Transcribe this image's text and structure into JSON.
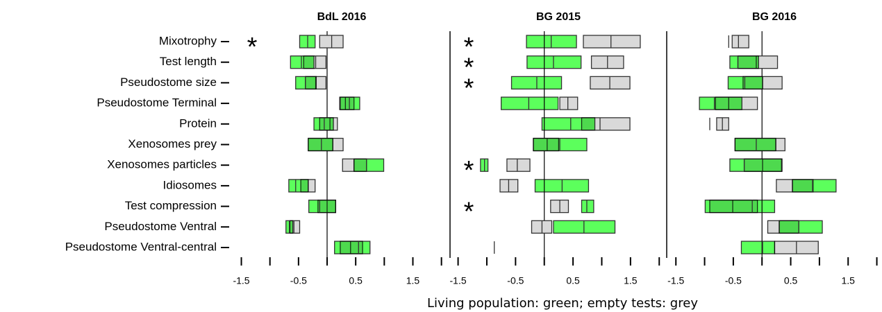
{
  "chart_data": [
    {
      "type": "interval",
      "title": "BdL 2016",
      "xlabel": "Living population: green; empty tests: grey",
      "categories": [
        "Mixotrophy",
        "Test length",
        "Pseudostome size",
        "Pseudostome Terminal",
        "Protein",
        "Xenosomes prey",
        "Xenosomes particles",
        "Idiosomes",
        "Test compression",
        "Pseudostome Ventral",
        "Pseudostome Ventral-central"
      ],
      "xlim": [
        -1.64,
        2.15
      ],
      "xticks": [
        -1.5,
        -0.5,
        0.5,
        1.5
      ],
      "xminorticks": [
        -1,
        0,
        1,
        2
      ],
      "refline": 0,
      "significance_marker": "*",
      "significant": [
        true,
        false,
        false,
        false,
        false,
        false,
        false,
        false,
        false,
        false,
        false
      ],
      "series": [
        {
          "color": "#d9d9d9",
          "values": [
            [
              -0.13,
              0.08,
              0.28
            ],
            [
              -0.41,
              -0.2,
              -0.02
            ],
            [
              -0.38,
              -0.2,
              -0.02
            ],
            [
              0.22,
              0.32,
              0.47
            ],
            [
              -0.13,
              0.05,
              0.18
            ],
            [
              -0.33,
              0.1,
              0.28
            ],
            [
              0.27,
              0.47,
              0.69
            ],
            [
              -0.46,
              -0.33,
              -0.21
            ],
            [
              -0.16,
              0.0,
              0.15
            ],
            [
              -0.65,
              -0.58,
              -0.48
            ],
            [
              0.23,
              0.41,
              0.62
            ]
          ]
        },
        {
          "color": "#5cff5c",
          "values": [
            [
              -0.48,
              -0.34,
              -0.21
            ],
            [
              -0.64,
              -0.45,
              -0.23
            ],
            [
              -0.55,
              -0.38,
              -0.19
            ],
            [
              0.23,
              0.39,
              0.57
            ],
            [
              -0.23,
              -0.05,
              0.11
            ],
            [
              -0.33,
              -0.1,
              0.1
            ],
            [
              0.47,
              0.69,
              0.99
            ],
            [
              -0.67,
              -0.55,
              -0.33
            ],
            [
              -0.32,
              -0.13,
              0.15
            ],
            [
              -0.72,
              -0.66,
              -0.6
            ],
            [
              0.13,
              0.55,
              0.75
            ]
          ]
        }
      ]
    },
    {
      "type": "interval",
      "title": "BG 2015",
      "xlim": [
        -1.64,
        2.13
      ],
      "xticks": [
        -1.5,
        -0.5,
        0.5,
        1.5
      ],
      "xminorticks": [
        -1,
        0,
        1,
        2
      ],
      "refline": 0,
      "significance_marker": "*",
      "significant": [
        true,
        true,
        true,
        false,
        false,
        false,
        true,
        false,
        true,
        false,
        false
      ],
      "series": [
        {
          "color": "#d9d9d9",
          "values": [
            [
              0.68,
              1.16,
              1.67
            ],
            [
              0.82,
              1.1,
              1.38
            ],
            [
              0.8,
              1.14,
              1.49
            ],
            [
              0.27,
              0.41,
              0.58
            ],
            [
              0.65,
              0.97,
              1.49
            ],
            [
              -0.19,
              0.05,
              0.25
            ],
            [
              -0.65,
              -0.47,
              -0.25
            ],
            [
              -0.77,
              -0.62,
              -0.46
            ],
            [
              0.11,
              0.27,
              0.42
            ],
            [
              -0.22,
              -0.04,
              0.13
            ],
            null
          ]
        },
        {
          "color": "#5cff5c",
          "values": [
            [
              -0.31,
              0.12,
              0.56
            ],
            [
              -0.3,
              0.16,
              0.64
            ],
            [
              -0.57,
              -0.13,
              0.3
            ],
            [
              -0.75,
              -0.27,
              0.24
            ],
            [
              -0.04,
              0.46,
              0.88
            ],
            [
              -0.19,
              0.27,
              0.74
            ],
            [
              -1.11,
              -1.04,
              -0.98
            ],
            [
              -0.16,
              0.31,
              0.77
            ],
            [
              0.65,
              0.74,
              0.86
            ],
            [
              0.16,
              0.69,
              1.23
            ],
            [
              -0.87,
              -0.87,
              -0.87
            ]
          ]
        }
      ]
    },
    {
      "type": "interval",
      "title": "BG 2016",
      "xlim": [
        -1.66,
        2.09
      ],
      "xticks": [
        -1.5,
        -0.5,
        0.5,
        1.5
      ],
      "xminorticks": [
        -1,
        0,
        1,
        2
      ],
      "refline": 0,
      "series": [
        {
          "color": "#d9d9d9",
          "values": [
            [
              -0.52,
              -0.41,
              -0.23
            ],
            [
              -0.42,
              -0.1,
              0.27
            ],
            [
              -0.33,
              0.01,
              0.35
            ],
            [
              -0.81,
              -0.58,
              -0.08
            ],
            [
              -0.79,
              -0.69,
              -0.58
            ],
            [
              -0.47,
              0.24,
              0.4
            ],
            [
              -0.31,
              0.01,
              0.35
            ],
            [
              0.25,
              0.53,
              0.89
            ],
            [
              -0.91,
              -0.51,
              -0.08
            ],
            [
              0.1,
              0.3,
              0.64
            ],
            [
              0.22,
              0.6,
              0.98
            ]
          ]
        },
        {
          "color": "#5cff5c",
          "values": [
            [
              -0.58,
              -0.58,
              -0.58
            ],
            [
              -0.56,
              -0.42,
              -0.06
            ],
            [
              -0.59,
              -0.3,
              0.01
            ],
            [
              -1.09,
              -0.83,
              -0.35
            ],
            [
              -0.91,
              -0.91,
              -0.91
            ],
            [
              -0.47,
              -0.1,
              0.24
            ],
            [
              -0.56,
              -0.31,
              0.34
            ],
            [
              0.53,
              0.88,
              1.29
            ],
            [
              -0.99,
              -0.17,
              0.22
            ],
            [
              0.3,
              0.64,
              1.05
            ],
            [
              -0.36,
              0.01,
              0.22
            ]
          ]
        }
      ]
    }
  ]
}
